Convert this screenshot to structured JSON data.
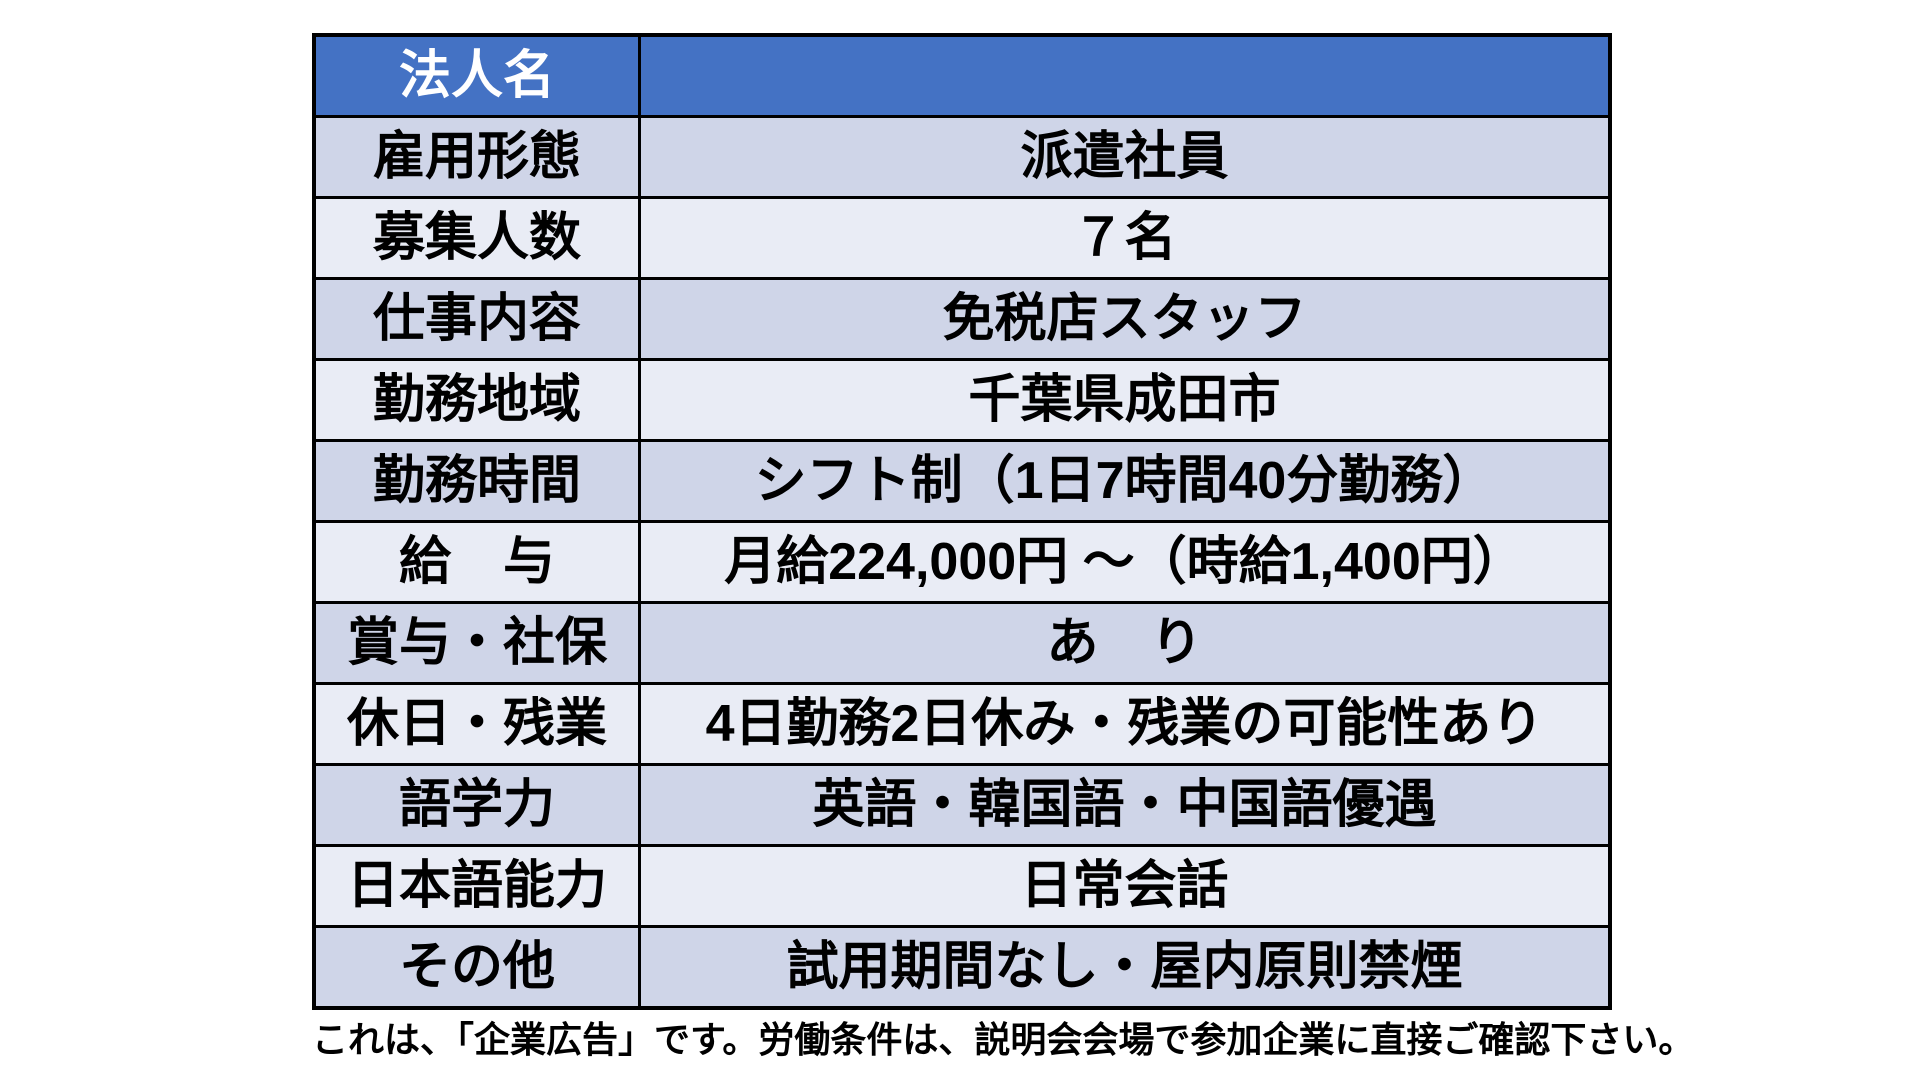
{
  "table": {
    "header": {
      "label": "法人名",
      "value": ""
    },
    "rows": [
      {
        "label": "雇用形態",
        "value": "派遣社員"
      },
      {
        "label": "募集人数",
        "value": "７名"
      },
      {
        "label": "仕事内容",
        "value": "免税店スタッフ"
      },
      {
        "label": "勤務地域",
        "value": "千葉県成田市"
      },
      {
        "label": "勤務時間",
        "value": "シフト制（1日7時間40分勤務）"
      },
      {
        "label": "給　与",
        "value": "月給224,000円 ～（時給1,400円）"
      },
      {
        "label": "賞与・社保",
        "value": "あ　り"
      },
      {
        "label": "休日・残業",
        "value": "4日勤務2日休み・残業の可能性あり"
      },
      {
        "label": "語学力",
        "value": "英語・韓国語・中国語優遇"
      },
      {
        "label": "日本語能力",
        "value": "日常会話"
      },
      {
        "label": "その他",
        "value": "試用期間なし・屋内原則禁煙"
      }
    ]
  },
  "footnote": "これは、「企業広告」です。労働条件は、説明会会場で参加企業に直接ご確認下さい。",
  "colors": {
    "header_bg": "#4472c4",
    "header_text": "#ffffff",
    "row_band_dark": "#cfd5e8",
    "row_band_light": "#e9ecf5",
    "border": "#000000",
    "body_text": "#000000",
    "page_bg": "#ffffff"
  }
}
